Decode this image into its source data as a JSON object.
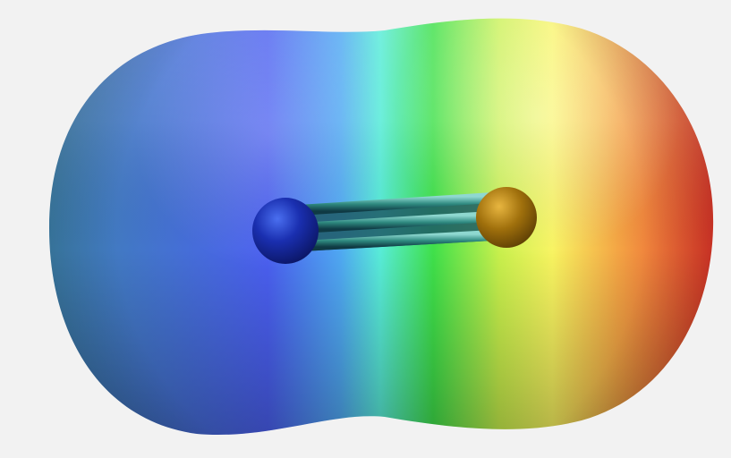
{
  "scene": {
    "background": "#f2f2f2",
    "surface_gradient_colors": [
      "#3f7fb8",
      "#4a62e0",
      "#5aa6ee",
      "#56e8d8",
      "#3fdc4a",
      "#f4f25a",
      "#f0a040",
      "#e8402c"
    ],
    "molecule": {
      "atoms": [
        {
          "name": "left-atom",
          "color": "#1e2fa0"
        },
        {
          "name": "right-atom",
          "color": "#b07a10"
        }
      ],
      "bond_order": 3
    }
  }
}
